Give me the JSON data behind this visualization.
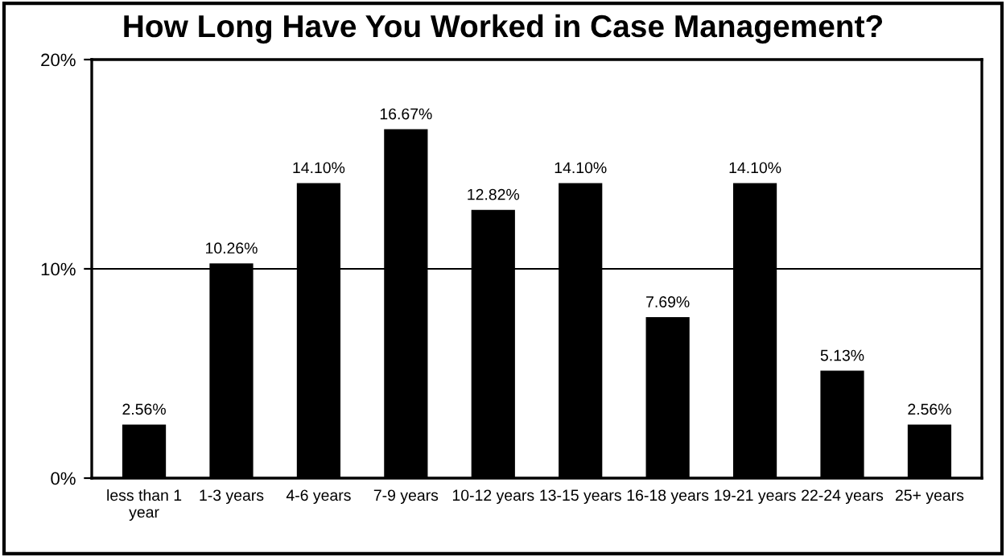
{
  "chart_data": {
    "type": "bar",
    "title": "How Long Have You Worked in Case Management?",
    "categories": [
      "less than 1 year",
      "1-3 years",
      "4-6 years",
      "7-9 years",
      "10-12 years",
      "13-15 years",
      "16-18 years",
      "19-21 years",
      "22-24 years",
      "25+ years"
    ],
    "values": [
      2.56,
      10.26,
      14.1,
      16.67,
      12.82,
      14.1,
      7.69,
      14.1,
      5.13,
      2.56
    ],
    "value_labels": [
      "2.56%",
      "10.26%",
      "14.10%",
      "16.67%",
      "12.82%",
      "14.10%",
      "7.69%",
      "14.10%",
      "5.13%",
      "2.56%"
    ],
    "color": "#000000",
    "ylim": [
      0,
      20
    ],
    "yticks": [
      {
        "value": 0,
        "label": "0%"
      },
      {
        "value": 10,
        "label": "10%"
      },
      {
        "value": 20,
        "label": "20%"
      }
    ],
    "grid": "y",
    "legend": false
  }
}
